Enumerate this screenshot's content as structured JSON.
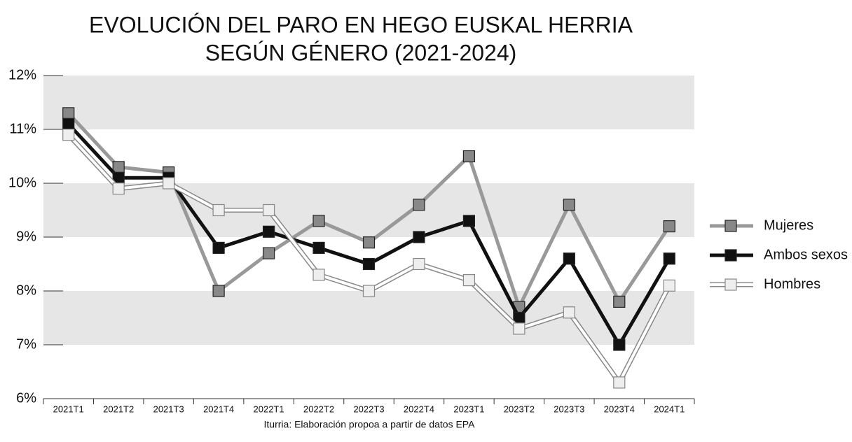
{
  "chart_data": {
    "type": "line",
    "title": [
      "EVOLUCIÓN DEL PARO EN HEGO EUSKAL HERRIA",
      "SEGÚN GÉNERO (2021-2024)"
    ],
    "source": "Iturria: Elaboración propoa a partir de datos EPA",
    "categories": [
      "2021T1",
      "2021T2",
      "2021T3",
      "2021T4",
      "2022T1",
      "2022T2",
      "2022T3",
      "2022T4",
      "2023T1",
      "2023T2",
      "2023T3",
      "2023T4",
      "2024T1"
    ],
    "series": [
      {
        "name": "Mujeres",
        "color": "#999999",
        "marker_color": "#888888",
        "values": [
          11.3,
          10.3,
          10.2,
          8.0,
          8.7,
          9.3,
          8.9,
          9.6,
          10.5,
          7.7,
          9.6,
          7.8,
          9.2
        ]
      },
      {
        "name": "Ambos sexos",
        "color": "#111111",
        "marker_color": "#111111",
        "values": [
          11.1,
          10.1,
          10.1,
          8.8,
          9.1,
          8.8,
          8.5,
          9.0,
          9.3,
          7.5,
          8.6,
          7.0,
          8.6
        ]
      },
      {
        "name": "Hombres",
        "color": "#ffffff",
        "marker_color": "#eeeeee",
        "outline": "#888888",
        "values": [
          10.9,
          9.9,
          10.0,
          9.5,
          9.5,
          8.3,
          8.0,
          8.5,
          8.2,
          7.3,
          7.6,
          6.3,
          8.1
        ]
      }
    ],
    "ylim": [
      6,
      12
    ],
    "yticks": [
      {
        "value": 6,
        "label": "6%"
      },
      {
        "value": 7,
        "label": "7%"
      },
      {
        "value": 8,
        "label": "8%"
      },
      {
        "value": 9,
        "label": "9%"
      },
      {
        "value": 10,
        "label": "10%"
      },
      {
        "value": 11,
        "label": "11%"
      },
      {
        "value": 12,
        "label": "12%"
      }
    ],
    "band_color": "#e6e6e6",
    "legend": "right"
  }
}
